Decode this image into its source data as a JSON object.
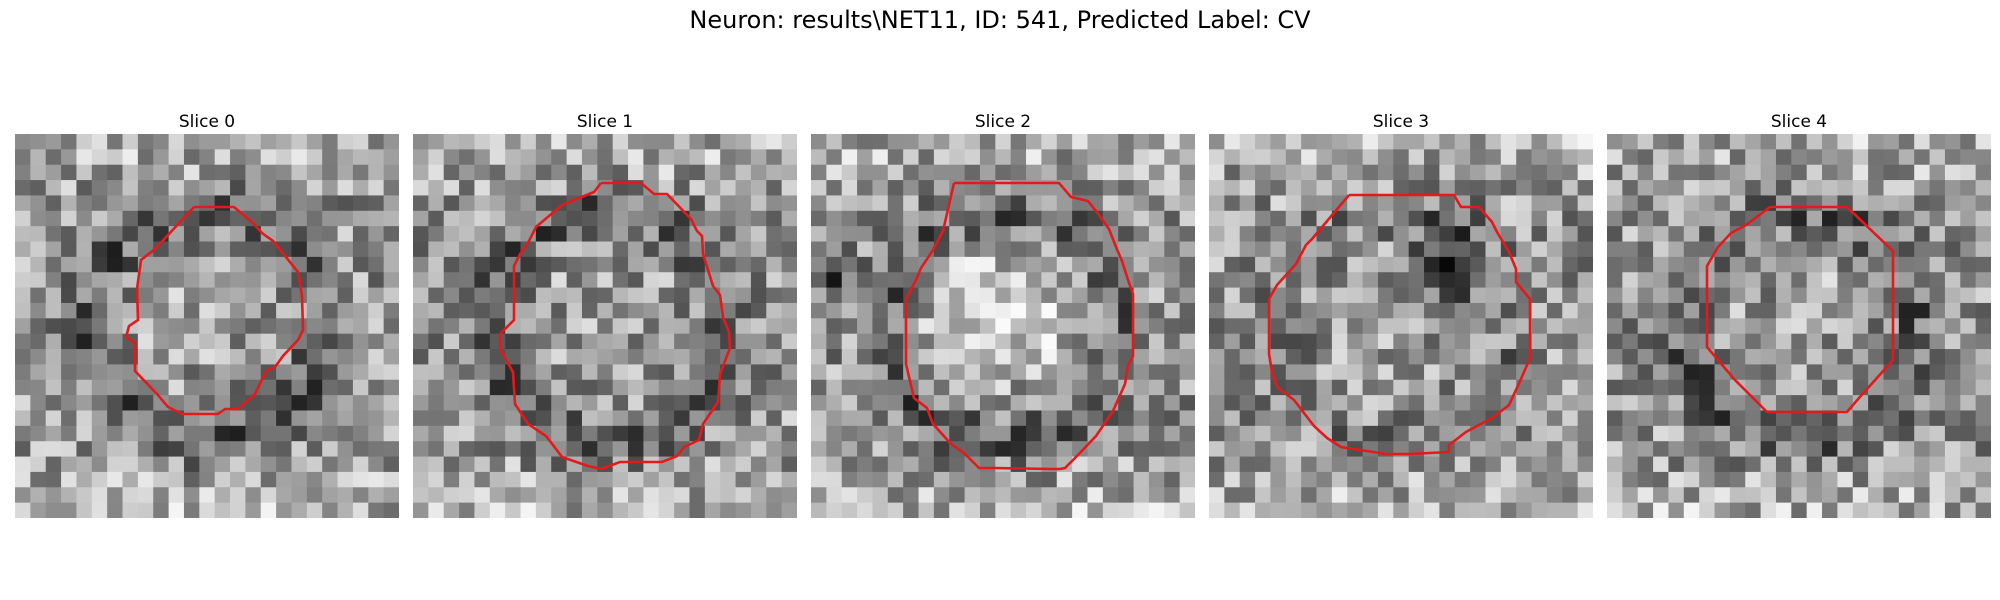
{
  "figure": {
    "title": "Neuron: results\\NET11, ID: 541, Predicted Label: CV"
  },
  "slices": [
    {
      "title": "Slice 0",
      "ring": "dark",
      "blob": "none",
      "seed": 11
    },
    {
      "title": "Slice 1",
      "ring": "dark",
      "blob": "none",
      "seed": 23
    },
    {
      "title": "Slice 2",
      "ring": "dark",
      "blob": "bright-center",
      "seed": 37
    },
    {
      "title": "Slice 3",
      "ring": "faint",
      "blob": "dark-top",
      "seed": 51
    },
    {
      "title": "Slice 4",
      "ring": "dark",
      "blob": "none",
      "seed": 67
    }
  ],
  "colors": {
    "outline": "#e31a1c",
    "background": "#ffffff"
  }
}
